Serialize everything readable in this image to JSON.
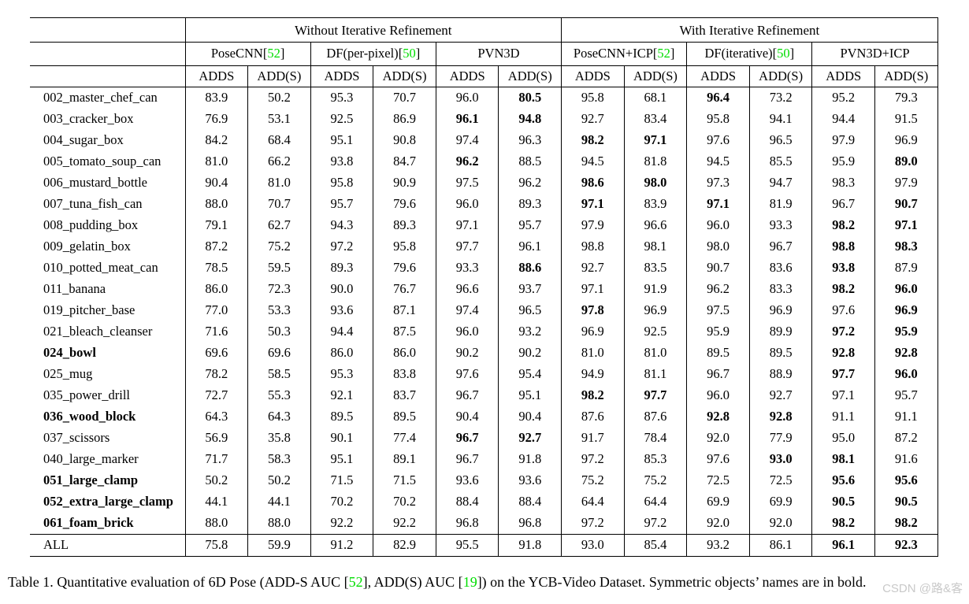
{
  "colors": {
    "citation_green": "#00dd00",
    "text": "#000000",
    "watermark_gray": "#c9c9c9"
  },
  "table": {
    "group_headers": [
      "Without Iterative Refinement",
      "With Iterative Refinement"
    ],
    "methods": [
      {
        "label": "PoseCNN",
        "ref": "52"
      },
      {
        "label": "DF(per-pixel)",
        "ref": "50"
      },
      {
        "label": "PVN3D",
        "ref": ""
      },
      {
        "label": "PoseCNN+ICP",
        "ref": "52"
      },
      {
        "label": "DF(iterative)",
        "ref": "50"
      },
      {
        "label": "PVN3D+ICP",
        "ref": ""
      }
    ],
    "metrics": [
      "ADDS",
      "ADD(S)"
    ],
    "rows": [
      {
        "name": "002_master_chef_can",
        "bold_name": false,
        "all": false,
        "values": [
          "83.9",
          "50.2",
          "95.3",
          "70.7",
          "96.0",
          "80.5",
          "95.8",
          "68.1",
          "96.4",
          "73.2",
          "95.2",
          "79.3"
        ],
        "bold": [
          0,
          0,
          0,
          0,
          0,
          1,
          0,
          0,
          1,
          0,
          0,
          0
        ]
      },
      {
        "name": "003_cracker_box",
        "bold_name": false,
        "all": false,
        "values": [
          "76.9",
          "53.1",
          "92.5",
          "86.9",
          "96.1",
          "94.8",
          "92.7",
          "83.4",
          "95.8",
          "94.1",
          "94.4",
          "91.5"
        ],
        "bold": [
          0,
          0,
          0,
          0,
          1,
          1,
          0,
          0,
          0,
          0,
          0,
          0
        ]
      },
      {
        "name": "004_sugar_box",
        "bold_name": false,
        "all": false,
        "values": [
          "84.2",
          "68.4",
          "95.1",
          "90.8",
          "97.4",
          "96.3",
          "98.2",
          "97.1",
          "97.6",
          "96.5",
          "97.9",
          "96.9"
        ],
        "bold": [
          0,
          0,
          0,
          0,
          0,
          0,
          1,
          1,
          0,
          0,
          0,
          0
        ]
      },
      {
        "name": "005_tomato_soup_can",
        "bold_name": false,
        "all": false,
        "values": [
          "81.0",
          "66.2",
          "93.8",
          "84.7",
          "96.2",
          "88.5",
          "94.5",
          "81.8",
          "94.5",
          "85.5",
          "95.9",
          "89.0"
        ],
        "bold": [
          0,
          0,
          0,
          0,
          1,
          0,
          0,
          0,
          0,
          0,
          0,
          1
        ]
      },
      {
        "name": "006_mustard_bottle",
        "bold_name": false,
        "all": false,
        "values": [
          "90.4",
          "81.0",
          "95.8",
          "90.9",
          "97.5",
          "96.2",
          "98.6",
          "98.0",
          "97.3",
          "94.7",
          "98.3",
          "97.9"
        ],
        "bold": [
          0,
          0,
          0,
          0,
          0,
          0,
          1,
          1,
          0,
          0,
          0,
          0
        ]
      },
      {
        "name": "007_tuna_fish_can",
        "bold_name": false,
        "all": false,
        "values": [
          "88.0",
          "70.7",
          "95.7",
          "79.6",
          "96.0",
          "89.3",
          "97.1",
          "83.9",
          "97.1",
          "81.9",
          "96.7",
          "90.7"
        ],
        "bold": [
          0,
          0,
          0,
          0,
          0,
          0,
          1,
          0,
          1,
          0,
          0,
          1
        ]
      },
      {
        "name": "008_pudding_box",
        "bold_name": false,
        "all": false,
        "values": [
          "79.1",
          "62.7",
          "94.3",
          "89.3",
          "97.1",
          "95.7",
          "97.9",
          "96.6",
          "96.0",
          "93.3",
          "98.2",
          "97.1"
        ],
        "bold": [
          0,
          0,
          0,
          0,
          0,
          0,
          0,
          0,
          0,
          0,
          1,
          1
        ]
      },
      {
        "name": "009_gelatin_box",
        "bold_name": false,
        "all": false,
        "values": [
          "87.2",
          "75.2",
          "97.2",
          "95.8",
          "97.7",
          "96.1",
          "98.8",
          "98.1",
          "98.0",
          "96.7",
          "98.8",
          "98.3"
        ],
        "bold": [
          0,
          0,
          0,
          0,
          0,
          0,
          0,
          0,
          0,
          0,
          1,
          1
        ]
      },
      {
        "name": "010_potted_meat_can",
        "bold_name": false,
        "all": false,
        "values": [
          "78.5",
          "59.5",
          "89.3",
          "79.6",
          "93.3",
          "88.6",
          "92.7",
          "83.5",
          "90.7",
          "83.6",
          "93.8",
          "87.9"
        ],
        "bold": [
          0,
          0,
          0,
          0,
          0,
          1,
          0,
          0,
          0,
          0,
          1,
          0
        ]
      },
      {
        "name": "011_banana",
        "bold_name": false,
        "all": false,
        "values": [
          "86.0",
          "72.3",
          "90.0",
          "76.7",
          "96.6",
          "93.7",
          "97.1",
          "91.9",
          "96.2",
          "83.3",
          "98.2",
          "96.0"
        ],
        "bold": [
          0,
          0,
          0,
          0,
          0,
          0,
          0,
          0,
          0,
          0,
          1,
          1
        ]
      },
      {
        "name": "019_pitcher_base",
        "bold_name": false,
        "all": false,
        "values": [
          "77.0",
          "53.3",
          "93.6",
          "87.1",
          "97.4",
          "96.5",
          "97.8",
          "96.9",
          "97.5",
          "96.9",
          "97.6",
          "96.9"
        ],
        "bold": [
          0,
          0,
          0,
          0,
          0,
          0,
          1,
          0,
          0,
          0,
          0,
          1
        ]
      },
      {
        "name": "021_bleach_cleanser",
        "bold_name": false,
        "all": false,
        "values": [
          "71.6",
          "50.3",
          "94.4",
          "87.5",
          "96.0",
          "93.2",
          "96.9",
          "92.5",
          "95.9",
          "89.9",
          "97.2",
          "95.9"
        ],
        "bold": [
          0,
          0,
          0,
          0,
          0,
          0,
          0,
          0,
          0,
          0,
          1,
          1
        ]
      },
      {
        "name": "024_bowl",
        "bold_name": true,
        "all": false,
        "values": [
          "69.6",
          "69.6",
          "86.0",
          "86.0",
          "90.2",
          "90.2",
          "81.0",
          "81.0",
          "89.5",
          "89.5",
          "92.8",
          "92.8"
        ],
        "bold": [
          0,
          0,
          0,
          0,
          0,
          0,
          0,
          0,
          0,
          0,
          1,
          1
        ]
      },
      {
        "name": "025_mug",
        "bold_name": false,
        "all": false,
        "values": [
          "78.2",
          "58.5",
          "95.3",
          "83.8",
          "97.6",
          "95.4",
          "94.9",
          "81.1",
          "96.7",
          "88.9",
          "97.7",
          "96.0"
        ],
        "bold": [
          0,
          0,
          0,
          0,
          0,
          0,
          0,
          0,
          0,
          0,
          1,
          1
        ]
      },
      {
        "name": "035_power_drill",
        "bold_name": false,
        "all": false,
        "values": [
          "72.7",
          "55.3",
          "92.1",
          "83.7",
          "96.7",
          "95.1",
          "98.2",
          "97.7",
          "96.0",
          "92.7",
          "97.1",
          "95.7"
        ],
        "bold": [
          0,
          0,
          0,
          0,
          0,
          0,
          1,
          1,
          0,
          0,
          0,
          0
        ]
      },
      {
        "name": "036_wood_block",
        "bold_name": true,
        "all": false,
        "values": [
          "64.3",
          "64.3",
          "89.5",
          "89.5",
          "90.4",
          "90.4",
          "87.6",
          "87.6",
          "92.8",
          "92.8",
          "91.1",
          "91.1"
        ],
        "bold": [
          0,
          0,
          0,
          0,
          0,
          0,
          0,
          0,
          1,
          1,
          0,
          0
        ]
      },
      {
        "name": "037_scissors",
        "bold_name": false,
        "all": false,
        "values": [
          "56.9",
          "35.8",
          "90.1",
          "77.4",
          "96.7",
          "92.7",
          "91.7",
          "78.4",
          "92.0",
          "77.9",
          "95.0",
          "87.2"
        ],
        "bold": [
          0,
          0,
          0,
          0,
          1,
          1,
          0,
          0,
          0,
          0,
          0,
          0
        ]
      },
      {
        "name": "040_large_marker",
        "bold_name": false,
        "all": false,
        "values": [
          "71.7",
          "58.3",
          "95.1",
          "89.1",
          "96.7",
          "91.8",
          "97.2",
          "85.3",
          "97.6",
          "93.0",
          "98.1",
          "91.6"
        ],
        "bold": [
          0,
          0,
          0,
          0,
          0,
          0,
          0,
          0,
          0,
          1,
          1,
          0
        ]
      },
      {
        "name": "051_large_clamp",
        "bold_name": true,
        "all": false,
        "values": [
          "50.2",
          "50.2",
          "71.5",
          "71.5",
          "93.6",
          "93.6",
          "75.2",
          "75.2",
          "72.5",
          "72.5",
          "95.6",
          "95.6"
        ],
        "bold": [
          0,
          0,
          0,
          0,
          0,
          0,
          0,
          0,
          0,
          0,
          1,
          1
        ]
      },
      {
        "name": "052_extra_large_clamp",
        "bold_name": true,
        "all": false,
        "values": [
          "44.1",
          "44.1",
          "70.2",
          "70.2",
          "88.4",
          "88.4",
          "64.4",
          "64.4",
          "69.9",
          "69.9",
          "90.5",
          "90.5"
        ],
        "bold": [
          0,
          0,
          0,
          0,
          0,
          0,
          0,
          0,
          0,
          0,
          1,
          1
        ]
      },
      {
        "name": "061_foam_brick",
        "bold_name": true,
        "all": false,
        "values": [
          "88.0",
          "88.0",
          "92.2",
          "92.2",
          "96.8",
          "96.8",
          "97.2",
          "97.2",
          "92.0",
          "92.0",
          "98.2",
          "98.2"
        ],
        "bold": [
          0,
          0,
          0,
          0,
          0,
          0,
          0,
          0,
          0,
          0,
          1,
          1
        ]
      },
      {
        "name": "ALL",
        "bold_name": false,
        "all": true,
        "values": [
          "75.8",
          "59.9",
          "91.2",
          "82.9",
          "95.5",
          "91.8",
          "93.0",
          "85.4",
          "93.2",
          "86.1",
          "96.1",
          "92.3"
        ],
        "bold": [
          0,
          0,
          0,
          0,
          0,
          0,
          0,
          0,
          0,
          0,
          1,
          1
        ]
      }
    ]
  },
  "caption": {
    "parts": [
      {
        "text": "Table 1. Quantitative evaluation of 6D Pose (ADD-S AUC [",
        "green": false
      },
      {
        "text": "52",
        "green": true
      },
      {
        "text": "], ADD(S) AUC [",
        "green": false
      },
      {
        "text": "19",
        "green": true
      },
      {
        "text": "]) on the YCB-Video Dataset. Symmetric objects’ names are in bold.",
        "green": false
      }
    ]
  },
  "watermark": "CSDN @路&客"
}
